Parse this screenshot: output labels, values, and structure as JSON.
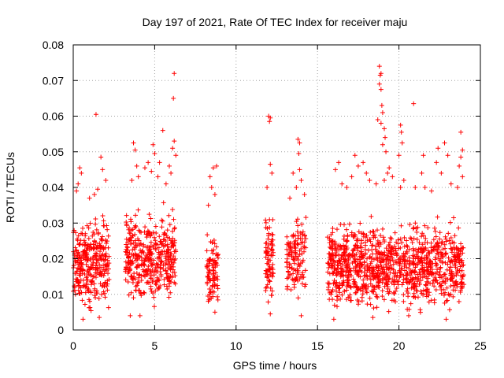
{
  "chart_data": {
    "type": "scatter",
    "title": "Day 197 of 2021, Rate Of TEC Index for receiver maju",
    "xlabel": "GPS time / hours",
    "ylabel": "ROTI / TECUs",
    "xlim": [
      0,
      25
    ],
    "ylim": [
      0,
      0.08
    ],
    "xticks": [
      0,
      5,
      10,
      15,
      20,
      25
    ],
    "xtick_labels": [
      "0",
      "5",
      "10",
      "15",
      "20",
      "25"
    ],
    "yticks": [
      0,
      0.01,
      0.02,
      0.03,
      0.04,
      0.05,
      0.06,
      0.07,
      0.08
    ],
    "ytick_labels": [
      "0",
      "0.01",
      "0.02",
      "0.03",
      "0.04",
      "0.05",
      "0.06",
      "0.07",
      "0.08"
    ],
    "grid": true,
    "marker": "+",
    "marker_color": "#ff0000",
    "series": [
      {
        "name": "ROTI",
        "segments": [
          {
            "x_range": [
              0.0,
              2.2
            ],
            "y_range": [
              0.004,
              0.035
            ],
            "count": 320
          },
          {
            "x_range": [
              3.2,
              6.3
            ],
            "y_range": [
              0.005,
              0.038
            ],
            "count": 420
          },
          {
            "x_range": [
              8.2,
              8.9
            ],
            "y_range": [
              0.006,
              0.028
            ],
            "count": 90
          },
          {
            "x_range": [
              11.8,
              12.3
            ],
            "y_range": [
              0.005,
              0.035
            ],
            "count": 80
          },
          {
            "x_range": [
              13.1,
              14.3
            ],
            "y_range": [
              0.006,
              0.035
            ],
            "count": 130
          },
          {
            "x_range": [
              15.6,
              24.0
            ],
            "y_range": [
              0.004,
              0.034
            ],
            "count": 1100
          }
        ],
        "outliers": [
          {
            "x": 1.4,
            "y": 0.0605
          },
          {
            "x": 1.5,
            "y": 0.0395
          },
          {
            "x": 1.3,
            "y": 0.038
          },
          {
            "x": 0.4,
            "y": 0.0455
          },
          {
            "x": 0.5,
            "y": 0.044
          },
          {
            "x": 0.3,
            "y": 0.041
          },
          {
            "x": 1.7,
            "y": 0.0485
          },
          {
            "x": 1.8,
            "y": 0.045
          },
          {
            "x": 2.0,
            "y": 0.042
          },
          {
            "x": 3.7,
            "y": 0.0525
          },
          {
            "x": 3.8,
            "y": 0.0505
          },
          {
            "x": 3.9,
            "y": 0.046
          },
          {
            "x": 4.0,
            "y": 0.043
          },
          {
            "x": 3.6,
            "y": 0.042
          },
          {
            "x": 4.9,
            "y": 0.052
          },
          {
            "x": 5.0,
            "y": 0.0495
          },
          {
            "x": 5.5,
            "y": 0.056
          },
          {
            "x": 5.3,
            "y": 0.047
          },
          {
            "x": 6.2,
            "y": 0.072
          },
          {
            "x": 6.15,
            "y": 0.065
          },
          {
            "x": 6.2,
            "y": 0.053
          },
          {
            "x": 6.1,
            "y": 0.051
          },
          {
            "x": 6.3,
            "y": 0.049
          },
          {
            "x": 5.9,
            "y": 0.046
          },
          {
            "x": 4.6,
            "y": 0.047
          },
          {
            "x": 4.4,
            "y": 0.0455
          },
          {
            "x": 4.8,
            "y": 0.0445
          },
          {
            "x": 8.6,
            "y": 0.0455
          },
          {
            "x": 8.8,
            "y": 0.046
          },
          {
            "x": 8.4,
            "y": 0.043
          },
          {
            "x": 8.5,
            "y": 0.04
          },
          {
            "x": 8.7,
            "y": 0.038
          },
          {
            "x": 8.3,
            "y": 0.035
          },
          {
            "x": 12.0,
            "y": 0.06
          },
          {
            "x": 12.1,
            "y": 0.0595
          },
          {
            "x": 12.05,
            "y": 0.0585
          },
          {
            "x": 12.1,
            "y": 0.0465
          },
          {
            "x": 12.2,
            "y": 0.044
          },
          {
            "x": 11.9,
            "y": 0.04
          },
          {
            "x": 13.8,
            "y": 0.0535
          },
          {
            "x": 13.9,
            "y": 0.0525
          },
          {
            "x": 13.85,
            "y": 0.0495
          },
          {
            "x": 13.9,
            "y": 0.045
          },
          {
            "x": 14.0,
            "y": 0.042
          },
          {
            "x": 13.7,
            "y": 0.04
          },
          {
            "x": 13.5,
            "y": 0.044
          },
          {
            "x": 14.2,
            "y": 0.038
          },
          {
            "x": 13.3,
            "y": 0.037
          },
          {
            "x": 16.3,
            "y": 0.047
          },
          {
            "x": 16.1,
            "y": 0.045
          },
          {
            "x": 16.5,
            "y": 0.041
          },
          {
            "x": 17.3,
            "y": 0.049
          },
          {
            "x": 17.5,
            "y": 0.046
          },
          {
            "x": 17.1,
            "y": 0.043
          },
          {
            "x": 17.8,
            "y": 0.047
          },
          {
            "x": 18.0,
            "y": 0.044
          },
          {
            "x": 18.2,
            "y": 0.042
          },
          {
            "x": 18.8,
            "y": 0.074
          },
          {
            "x": 18.9,
            "y": 0.072
          },
          {
            "x": 18.85,
            "y": 0.0715
          },
          {
            "x": 18.8,
            "y": 0.069
          },
          {
            "x": 18.9,
            "y": 0.0675
          },
          {
            "x": 18.95,
            "y": 0.063
          },
          {
            "x": 19.0,
            "y": 0.061
          },
          {
            "x": 18.7,
            "y": 0.059
          },
          {
            "x": 18.9,
            "y": 0.058
          },
          {
            "x": 19.1,
            "y": 0.0565
          },
          {
            "x": 19.15,
            "y": 0.054
          },
          {
            "x": 19.0,
            "y": 0.052
          },
          {
            "x": 19.2,
            "y": 0.05
          },
          {
            "x": 19.4,
            "y": 0.0455
          },
          {
            "x": 19.3,
            "y": 0.044
          },
          {
            "x": 19.1,
            "y": 0.042
          },
          {
            "x": 18.6,
            "y": 0.041
          },
          {
            "x": 19.6,
            "y": 0.043
          },
          {
            "x": 20.1,
            "y": 0.0575
          },
          {
            "x": 20.15,
            "y": 0.0555
          },
          {
            "x": 20.2,
            "y": 0.0525
          },
          {
            "x": 20.0,
            "y": 0.049
          },
          {
            "x": 20.3,
            "y": 0.042
          },
          {
            "x": 20.1,
            "y": 0.04
          },
          {
            "x": 20.9,
            "y": 0.0635
          },
          {
            "x": 21.5,
            "y": 0.049
          },
          {
            "x": 21.4,
            "y": 0.044
          },
          {
            "x": 21.6,
            "y": 0.04
          },
          {
            "x": 22.3,
            "y": 0.047
          },
          {
            "x": 22.4,
            "y": 0.051
          },
          {
            "x": 22.8,
            "y": 0.0525
          },
          {
            "x": 23.0,
            "y": 0.049
          },
          {
            "x": 22.6,
            "y": 0.044
          },
          {
            "x": 23.2,
            "y": 0.041
          },
          {
            "x": 23.8,
            "y": 0.0555
          },
          {
            "x": 23.9,
            "y": 0.0505
          },
          {
            "x": 23.8,
            "y": 0.0485
          },
          {
            "x": 23.7,
            "y": 0.046
          },
          {
            "x": 23.9,
            "y": 0.043
          },
          {
            "x": 23.6,
            "y": 0.04
          },
          {
            "x": 0.2,
            "y": 0.039
          },
          {
            "x": 1.0,
            "y": 0.037
          },
          {
            "x": 5.2,
            "y": 0.043
          },
          {
            "x": 5.7,
            "y": 0.041
          },
          {
            "x": 6.0,
            "y": 0.044
          },
          {
            "x": 21.0,
            "y": 0.04
          },
          {
            "x": 22.0,
            "y": 0.039
          },
          {
            "x": 16.8,
            "y": 0.04
          },
          {
            "x": 0.6,
            "y": 0.003
          },
          {
            "x": 1.6,
            "y": 0.0035
          },
          {
            "x": 3.5,
            "y": 0.004
          },
          {
            "x": 4.1,
            "y": 0.004
          },
          {
            "x": 14.0,
            "y": 0.004
          },
          {
            "x": 16.0,
            "y": 0.003
          },
          {
            "x": 18.4,
            "y": 0.0035
          },
          {
            "x": 22.9,
            "y": 0.003
          },
          {
            "x": 20.6,
            "y": 0.004
          },
          {
            "x": 8.7,
            "y": 0.005
          },
          {
            "x": 12.1,
            "y": 0.0045
          }
        ]
      }
    ]
  }
}
